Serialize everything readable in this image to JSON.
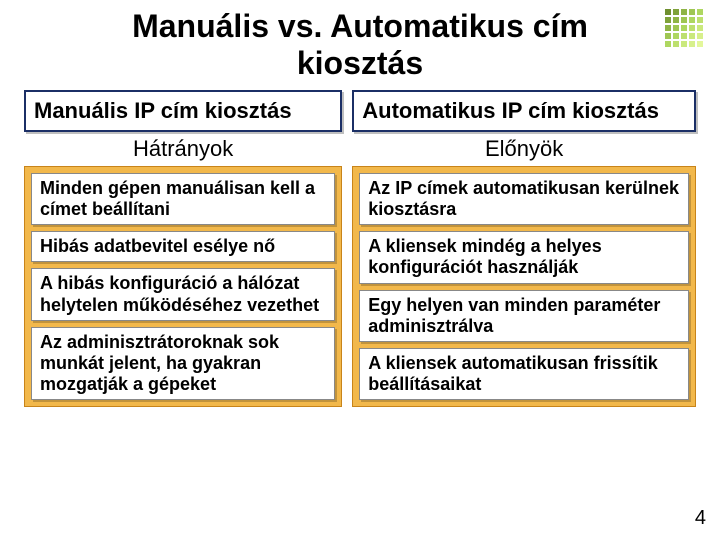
{
  "title": "Manuális vs. Automatikus cím kiosztás",
  "dot_colors": [
    [
      "#6f8f2f",
      "#7fa23a",
      "#8fb446",
      "#9fc653",
      "#aed760"
    ],
    [
      "#7fa23a",
      "#8fb446",
      "#9fc653",
      "#aed760",
      "#bde06e"
    ],
    [
      "#8fb446",
      "#9fc653",
      "#aed760",
      "#bde06e",
      "#cae97d"
    ],
    [
      "#9fc653",
      "#aed760",
      "#bde06e",
      "#cae97d",
      "#d7f08c"
    ],
    [
      "#aed760",
      "#bde06e",
      "#cae97d",
      "#d7f08c",
      "#e3f79b"
    ]
  ],
  "left": {
    "header": "Manuális IP cím kiosztás",
    "header_border": "#1b2f66",
    "subheader": "Hátrányok",
    "body_bg": "#f2b84b",
    "body_border": "#c8841a",
    "items": [
      "Minden gépen manuálisan kell a címet beállítani",
      "Hibás adatbevitel esélye nő",
      "A hibás konfiguráció a hálózat helytelen működéséhez vezethet",
      "Az adminisztrátoroknak sok munkát jelent, ha gyakran mozgatják a gépeket"
    ]
  },
  "right": {
    "header": "Automatikus IP cím kiosztás",
    "header_border": "#1b2f66",
    "subheader": "Előnyök",
    "body_bg": "#f2b84b",
    "body_border": "#c8841a",
    "items": [
      "Az IP címek automatikusan kerülnek kiosztásra",
      "A kliensek mindég a helyes konfigurációt használják",
      "Egy helyen van minden paraméter adminisztrálva",
      "A kliensek automatikusan frissítik beállításaikat"
    ]
  },
  "page_number": "4"
}
